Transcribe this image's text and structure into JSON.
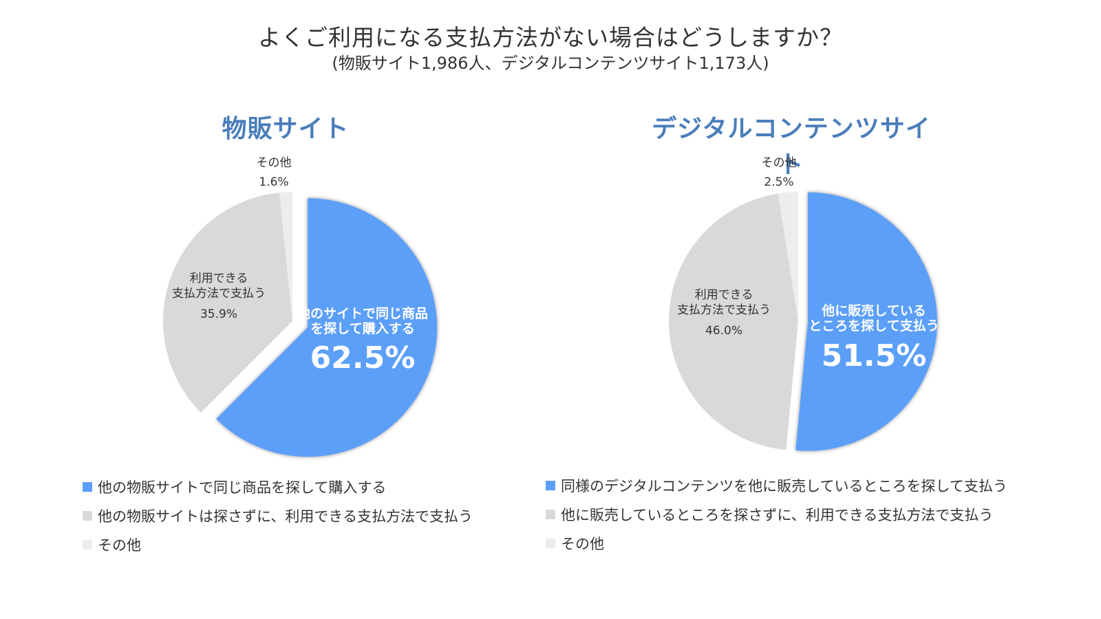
{
  "title": "よくご利用になる支払方法がない場合はどうしますか？",
  "subtitle": "(物販サイト1,986人、デジタルコンテンツサイト1,173人)",
  "colors": {
    "blue": "#5b9ff9",
    "gray": "#d9d9d9",
    "light": "#ededed",
    "title_blue": "#4a7ebb"
  },
  "chart_data": [
    {
      "type": "pie",
      "title": "物販サイト",
      "slices": [
        {
          "label": "他のサイトで同じ商品を探して購入する",
          "value": 62.5,
          "value_label": "62.5%",
          "color": "#5b9ff9",
          "exploded": true
        },
        {
          "label": "利用できる支払方法で支払う",
          "value": 35.9,
          "value_label": "35.9%",
          "color": "#d9d9d9"
        },
        {
          "label": "その他",
          "value": 1.6,
          "value_label": "1.6%",
          "color": "#ededed"
        }
      ],
      "legend": [
        {
          "label": "他の物販サイトで同じ商品を探して購入する",
          "color": "#5b9ff9"
        },
        {
          "label": "他の物販サイトは探さずに、利用できる支払方法で支払う",
          "color": "#d9d9d9"
        },
        {
          "label": "その他",
          "color": "#ededed"
        }
      ]
    },
    {
      "type": "pie",
      "title": "デジタルコンテンツサイト",
      "slices": [
        {
          "label": "他に販売しているところを探して支払う",
          "value": 51.5,
          "value_label": "51.5%",
          "color": "#5b9ff9",
          "exploded": true
        },
        {
          "label": "利用できる支払方法で支払う",
          "value": 46.0,
          "value_label": "46.0%",
          "color": "#d9d9d9"
        },
        {
          "label": "その他",
          "value": 2.5,
          "value_label": "2.5%",
          "color": "#ededed"
        }
      ],
      "legend": [
        {
          "label": "同様のデジタルコンテンツを他に販売しているところを探して支払う",
          "color": "#5b9ff9"
        },
        {
          "label": "他に販売しているところを探さずに、利用できる支払方法で支払う",
          "color": "#d9d9d9"
        },
        {
          "label": "その他",
          "color": "#ededed"
        }
      ]
    }
  ]
}
